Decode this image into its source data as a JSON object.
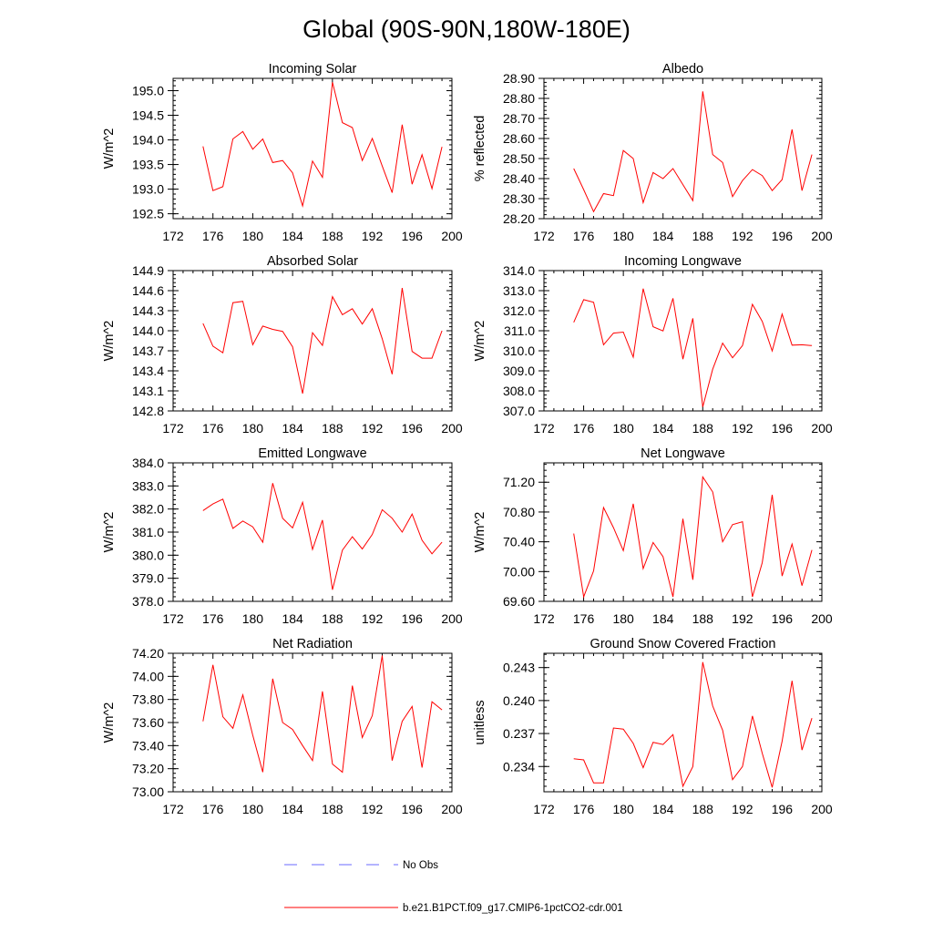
{
  "title": "Global (90S-90N,180W-180E)",
  "colors": {
    "model": "#ff0000",
    "obs": "#6a6aff",
    "axes": "#000000"
  },
  "legend": [
    {
      "label": "No Obs",
      "style": "dashed",
      "color": "#6a6aff"
    },
    {
      "label": "b.e21.B1PCT.f09_g17.CMIP6-1pctCO2-cdr.001",
      "style": "solid",
      "color": "#ff0000"
    }
  ],
  "chart_data": [
    {
      "type": "line",
      "title": "Incoming Solar",
      "ylabel": "W/m^2",
      "xlabel": "",
      "xlim": [
        172,
        200
      ],
      "ylim": [
        192.4,
        195.25
      ],
      "xticks": [
        172,
        176,
        180,
        184,
        188,
        192,
        196,
        200
      ],
      "yticks": [
        "192.5",
        "193.0",
        "193.5",
        "194.0",
        "194.5",
        "195.0"
      ],
      "series": [
        {
          "color": "#ff0000",
          "x": [
            175,
            176,
            177,
            178,
            179,
            180,
            181,
            182,
            183,
            184,
            185,
            186,
            187,
            188,
            189,
            190,
            191,
            192,
            193,
            194,
            195,
            196,
            197,
            198,
            199
          ],
          "y": [
            193.87,
            192.97,
            193.05,
            194.02,
            194.17,
            193.81,
            194.02,
            193.54,
            193.58,
            193.33,
            192.66,
            193.57,
            193.24,
            195.17,
            194.35,
            194.25,
            193.58,
            194.03,
            193.47,
            192.93,
            194.31,
            193.1,
            193.7,
            193.01,
            193.86
          ]
        }
      ]
    },
    {
      "type": "line",
      "title": "Albedo",
      "ylabel": "% reflected",
      "xlabel": "",
      "xlim": [
        172,
        200
      ],
      "ylim": [
        28.2,
        28.9
      ],
      "xticks": [
        172,
        176,
        180,
        184,
        188,
        192,
        196,
        200
      ],
      "yticks": [
        "28.20",
        "28.30",
        "28.40",
        "28.50",
        "28.60",
        "28.70",
        "28.80",
        "28.90"
      ],
      "series": [
        {
          "color": "#ff0000",
          "x": [
            175,
            176,
            177,
            178,
            179,
            180,
            181,
            182,
            183,
            184,
            185,
            186,
            187,
            188,
            189,
            190,
            191,
            192,
            193,
            194,
            195,
            196,
            197,
            198,
            199
          ],
          "y": [
            28.45,
            28.345,
            28.235,
            28.325,
            28.315,
            28.54,
            28.5,
            28.28,
            28.43,
            28.4,
            28.45,
            28.37,
            28.29,
            28.835,
            28.52,
            28.48,
            28.31,
            28.39,
            28.445,
            28.415,
            28.34,
            28.395,
            28.645,
            28.34,
            28.52
          ]
        }
      ]
    },
    {
      "type": "line",
      "title": "Absorbed Solar",
      "ylabel": "W/m^2",
      "xlabel": "",
      "xlim": [
        172,
        200
      ],
      "ylim": [
        142.8,
        144.9
      ],
      "xticks": [
        172,
        176,
        180,
        184,
        188,
        192,
        196,
        200
      ],
      "yticks": [
        "142.8",
        "143.1",
        "143.4",
        "143.7",
        "144.0",
        "144.3",
        "144.6",
        "144.9"
      ],
      "series": [
        {
          "color": "#ff0000",
          "x": [
            175,
            176,
            177,
            178,
            179,
            180,
            181,
            182,
            183,
            184,
            185,
            186,
            187,
            188,
            189,
            190,
            191,
            192,
            193,
            194,
            195,
            196,
            197,
            198,
            199
          ],
          "y": [
            144.11,
            143.77,
            143.67,
            144.42,
            144.44,
            143.79,
            144.07,
            144.02,
            143.99,
            143.76,
            143.06,
            143.97,
            143.78,
            144.51,
            144.24,
            144.33,
            144.1,
            144.33,
            143.88,
            143.35,
            144.64,
            143.69,
            143.59,
            143.59,
            144.0
          ]
        }
      ]
    },
    {
      "type": "line",
      "title": "Incoming Longwave",
      "ylabel": "W/m^2",
      "xlabel": "",
      "xlim": [
        172,
        200
      ],
      "ylim": [
        307.0,
        314.0
      ],
      "xticks": [
        172,
        176,
        180,
        184,
        188,
        192,
        196,
        200
      ],
      "yticks": [
        "307.0",
        "308.0",
        "309.0",
        "310.0",
        "311.0",
        "312.0",
        "313.0",
        "314.0"
      ],
      "series": [
        {
          "color": "#ff0000",
          "x": [
            175,
            176,
            177,
            178,
            179,
            180,
            181,
            182,
            183,
            184,
            185,
            186,
            187,
            188,
            189,
            190,
            191,
            192,
            193,
            194,
            195,
            196,
            197,
            198,
            199
          ],
          "y": [
            311.42,
            312.55,
            312.42,
            310.3,
            310.88,
            310.93,
            309.68,
            313.1,
            311.2,
            310.99,
            312.62,
            309.58,
            311.62,
            307.2,
            309.08,
            310.38,
            309.65,
            310.26,
            312.32,
            311.47,
            309.99,
            311.83,
            310.28,
            310.3,
            310.26
          ]
        }
      ]
    },
    {
      "type": "line",
      "title": "Emitted Longwave",
      "ylabel": "W/m^2",
      "xlabel": "",
      "xlim": [
        172,
        200
      ],
      "ylim": [
        378.0,
        384.0
      ],
      "xticks": [
        172,
        176,
        180,
        184,
        188,
        192,
        196,
        200
      ],
      "yticks": [
        "378.0",
        "379.0",
        "380.0",
        "381.0",
        "382.0",
        "383.0",
        "384.0"
      ],
      "series": [
        {
          "color": "#ff0000",
          "x": [
            175,
            176,
            177,
            178,
            179,
            180,
            181,
            182,
            183,
            184,
            185,
            186,
            187,
            188,
            189,
            190,
            191,
            192,
            193,
            194,
            195,
            196,
            197,
            198,
            199
          ],
          "y": [
            381.93,
            382.22,
            382.43,
            381.16,
            381.48,
            381.23,
            380.56,
            383.12,
            381.6,
            381.18,
            382.29,
            380.25,
            381.52,
            378.5,
            380.22,
            380.8,
            380.27,
            380.9,
            381.97,
            381.6,
            381.0,
            381.78,
            380.65,
            380.06,
            380.56
          ]
        }
      ]
    },
    {
      "type": "line",
      "title": "Net Longwave",
      "ylabel": "W/m^2",
      "xlabel": "",
      "xlim": [
        172,
        200
      ],
      "ylim": [
        69.6,
        71.46
      ],
      "xticks": [
        172,
        176,
        180,
        184,
        188,
        192,
        196,
        200
      ],
      "yticks": [
        "69.60",
        "70.00",
        "70.40",
        "70.80",
        "71.20"
      ],
      "series": [
        {
          "color": "#ff0000",
          "x": [
            175,
            176,
            177,
            178,
            179,
            180,
            181,
            182,
            183,
            184,
            185,
            186,
            187,
            188,
            189,
            190,
            191,
            192,
            193,
            194,
            195,
            196,
            197,
            198,
            199
          ],
          "y": [
            70.51,
            69.66,
            70.01,
            70.86,
            70.59,
            70.28,
            70.91,
            70.04,
            70.39,
            70.2,
            69.66,
            70.71,
            69.89,
            71.27,
            71.07,
            70.4,
            70.63,
            70.67,
            69.66,
            70.12,
            71.03,
            69.94,
            70.37,
            69.81,
            70.29
          ]
        }
      ]
    },
    {
      "type": "line",
      "title": "Net Radiation",
      "ylabel": "W/m^2",
      "xlabel": "",
      "xlim": [
        172,
        200
      ],
      "ylim": [
        73.0,
        74.2
      ],
      "xticks": [
        172,
        176,
        180,
        184,
        188,
        192,
        196,
        200
      ],
      "yticks": [
        "73.00",
        "73.20",
        "73.40",
        "73.60",
        "73.80",
        "74.00",
        "74.20"
      ],
      "series": [
        {
          "color": "#ff0000",
          "x": [
            175,
            176,
            177,
            178,
            179,
            180,
            181,
            182,
            183,
            184,
            185,
            186,
            187,
            188,
            189,
            190,
            191,
            192,
            193,
            194,
            195,
            196,
            197,
            198,
            199
          ],
          "y": [
            73.61,
            74.1,
            73.65,
            73.55,
            73.84,
            73.49,
            73.17,
            73.98,
            73.6,
            73.54,
            73.4,
            73.27,
            73.87,
            73.24,
            73.17,
            73.92,
            73.47,
            73.66,
            74.18,
            73.27,
            73.61,
            73.74,
            73.21,
            73.78,
            73.71
          ]
        }
      ]
    },
    {
      "type": "line",
      "title": "Ground Snow Covered Fraction",
      "ylabel": "unitless",
      "xlabel": "",
      "xlim": [
        172,
        200
      ],
      "ylim": [
        0.2317,
        0.2443
      ],
      "xticks": [
        172,
        176,
        180,
        184,
        188,
        192,
        196,
        200
      ],
      "yticks": [
        "0.234",
        "0.237",
        "0.240",
        "0.243"
      ],
      "series": [
        {
          "color": "#ff0000",
          "x": [
            175,
            176,
            177,
            178,
            179,
            180,
            181,
            182,
            183,
            184,
            185,
            186,
            187,
            188,
            189,
            190,
            191,
            192,
            193,
            194,
            195,
            196,
            197,
            198,
            199
          ],
          "y": [
            0.2347,
            0.2346,
            0.2325,
            0.2325,
            0.2375,
            0.2374,
            0.2361,
            0.2339,
            0.2362,
            0.236,
            0.2369,
            0.2322,
            0.234,
            0.2435,
            0.2395,
            0.2373,
            0.2328,
            0.234,
            0.2386,
            0.2352,
            0.2321,
            0.2363,
            0.2418,
            0.2355,
            0.2384
          ]
        }
      ]
    }
  ]
}
